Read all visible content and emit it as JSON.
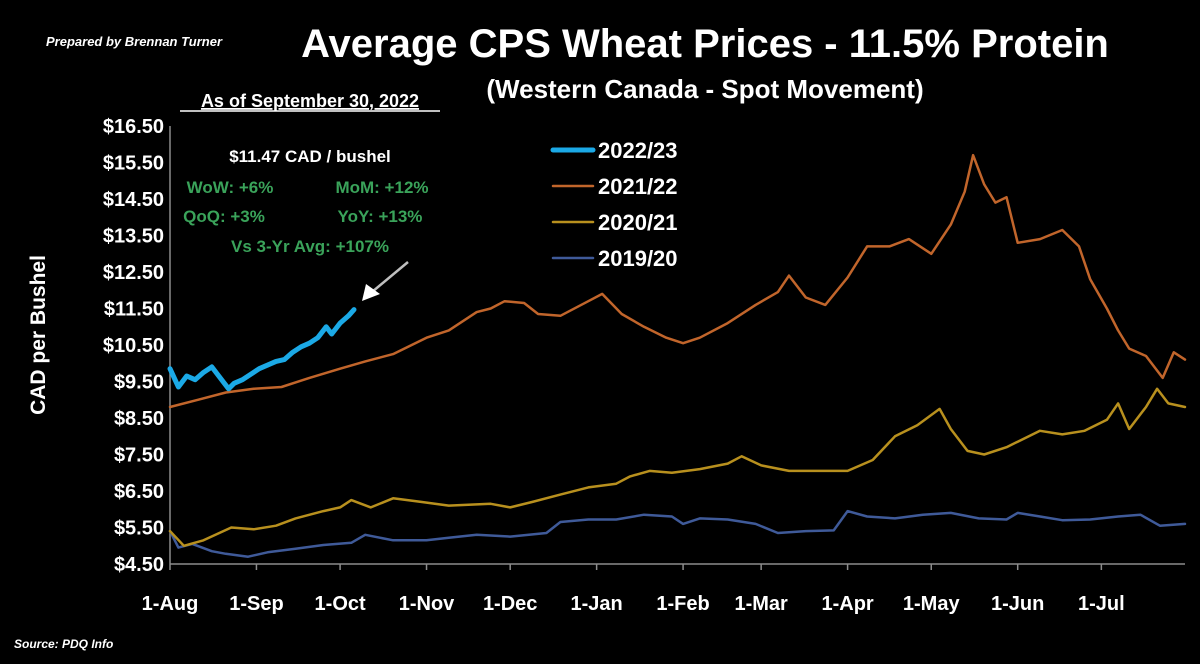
{
  "header": {
    "prepared_by": "Prepared by Brennan Turner",
    "title": "Average CPS Wheat Prices - 11.5% Protein",
    "subtitle": "(Western Canada - Spot Movement)",
    "as_of": "As of September 30, 2022",
    "source": "Source: PDQ Info"
  },
  "stats": {
    "price": "$11.47 CAD / bushel",
    "wow": "WoW: +6%",
    "mom": "MoM: +12%",
    "qoq": "QoQ: +3%",
    "yoy": "YoY: +13%",
    "vs3yr": "Vs 3-Yr Avg: +107%",
    "color": "#3aa35a"
  },
  "chart_data": {
    "type": "line",
    "title": "Average CPS Wheat Prices - 11.5% Protein",
    "subtitle": "(Western Canada - Spot Movement)",
    "xlabel": "",
    "ylabel": "CAD per Bushel",
    "x_unit": "day of crop year (from 1-Aug)",
    "xlim": [
      0,
      364
    ],
    "ylim": [
      4.5,
      16.5
    ],
    "grid": false,
    "legend_position": "top-center",
    "y_ticks": [
      "$4.50",
      "$5.50",
      "$6.50",
      "$7.50",
      "$8.50",
      "$9.50",
      "$10.50",
      "$11.50",
      "$12.50",
      "$13.50",
      "$14.50",
      "$15.50",
      "$16.50"
    ],
    "y_tick_values": [
      4.5,
      5.5,
      6.5,
      7.5,
      8.5,
      9.5,
      10.5,
      11.5,
      12.5,
      13.5,
      14.5,
      15.5,
      16.5
    ],
    "x_ticks": [
      {
        "label": "1-Aug",
        "day": 0
      },
      {
        "label": "1-Sep",
        "day": 31
      },
      {
        "label": "1-Oct",
        "day": 61
      },
      {
        "label": "1-Nov",
        "day": 92
      },
      {
        "label": "1-Dec",
        "day": 122
      },
      {
        "label": "1-Jan",
        "day": 153
      },
      {
        "label": "1-Feb",
        "day": 184
      },
      {
        "label": "1-Mar",
        "day": 212
      },
      {
        "label": "1-Apr",
        "day": 243
      },
      {
        "label": "1-May",
        "day": 273
      },
      {
        "label": "1-Jun",
        "day": 304
      },
      {
        "label": "1-Jul",
        "day": 334
      }
    ],
    "series": [
      {
        "name": "2019/20",
        "color": "#3f5a99",
        "width": 2.5,
        "points": [
          [
            0,
            5.4
          ],
          [
            3,
            4.95
          ],
          [
            8,
            5.05
          ],
          [
            15,
            4.85
          ],
          [
            20,
            4.78
          ],
          [
            28,
            4.7
          ],
          [
            35,
            4.82
          ],
          [
            45,
            4.92
          ],
          [
            55,
            5.02
          ],
          [
            65,
            5.08
          ],
          [
            70,
            5.3
          ],
          [
            80,
            5.15
          ],
          [
            92,
            5.15
          ],
          [
            100,
            5.22
          ],
          [
            110,
            5.3
          ],
          [
            122,
            5.25
          ],
          [
            135,
            5.35
          ],
          [
            140,
            5.65
          ],
          [
            150,
            5.72
          ],
          [
            160,
            5.72
          ],
          [
            170,
            5.85
          ],
          [
            180,
            5.8
          ],
          [
            184,
            5.6
          ],
          [
            190,
            5.75
          ],
          [
            200,
            5.72
          ],
          [
            210,
            5.6
          ],
          [
            218,
            5.35
          ],
          [
            228,
            5.4
          ],
          [
            238,
            5.42
          ],
          [
            243,
            5.95
          ],
          [
            250,
            5.8
          ],
          [
            260,
            5.75
          ],
          [
            270,
            5.85
          ],
          [
            280,
            5.9
          ],
          [
            290,
            5.75
          ],
          [
            300,
            5.72
          ],
          [
            304,
            5.9
          ],
          [
            312,
            5.8
          ],
          [
            320,
            5.7
          ],
          [
            330,
            5.72
          ],
          [
            340,
            5.8
          ],
          [
            348,
            5.85
          ],
          [
            355,
            5.55
          ],
          [
            364,
            5.6
          ]
        ]
      },
      {
        "name": "2020/21",
        "color": "#b8901e",
        "width": 2.5,
        "points": [
          [
            0,
            5.4
          ],
          [
            5,
            5.0
          ],
          [
            12,
            5.15
          ],
          [
            22,
            5.5
          ],
          [
            30,
            5.45
          ],
          [
            38,
            5.55
          ],
          [
            45,
            5.75
          ],
          [
            55,
            5.95
          ],
          [
            61,
            6.05
          ],
          [
            65,
            6.25
          ],
          [
            72,
            6.05
          ],
          [
            80,
            6.3
          ],
          [
            90,
            6.2
          ],
          [
            100,
            6.1
          ],
          [
            115,
            6.15
          ],
          [
            122,
            6.05
          ],
          [
            130,
            6.2
          ],
          [
            140,
            6.4
          ],
          [
            150,
            6.6
          ],
          [
            160,
            6.7
          ],
          [
            165,
            6.9
          ],
          [
            172,
            7.05
          ],
          [
            180,
            7.0
          ],
          [
            190,
            7.1
          ],
          [
            200,
            7.25
          ],
          [
            205,
            7.45
          ],
          [
            212,
            7.2
          ],
          [
            222,
            7.05
          ],
          [
            232,
            7.05
          ],
          [
            243,
            7.05
          ],
          [
            252,
            7.35
          ],
          [
            260,
            8.0
          ],
          [
            268,
            8.3
          ],
          [
            276,
            8.75
          ],
          [
            280,
            8.2
          ],
          [
            286,
            7.6
          ],
          [
            292,
            7.5
          ],
          [
            300,
            7.7
          ],
          [
            304,
            7.85
          ],
          [
            312,
            8.15
          ],
          [
            320,
            8.05
          ],
          [
            328,
            8.15
          ],
          [
            336,
            8.45
          ],
          [
            340,
            8.9
          ],
          [
            344,
            8.2
          ],
          [
            350,
            8.8
          ],
          [
            354,
            9.3
          ],
          [
            358,
            8.9
          ],
          [
            364,
            8.8
          ]
        ]
      },
      {
        "name": "2021/22",
        "color": "#c1652b",
        "width": 2.5,
        "points": [
          [
            0,
            8.8
          ],
          [
            10,
            9.0
          ],
          [
            20,
            9.2
          ],
          [
            30,
            9.3
          ],
          [
            40,
            9.35
          ],
          [
            50,
            9.6
          ],
          [
            61,
            9.85
          ],
          [
            70,
            10.05
          ],
          [
            80,
            10.25
          ],
          [
            92,
            10.7
          ],
          [
            100,
            10.9
          ],
          [
            110,
            11.4
          ],
          [
            115,
            11.5
          ],
          [
            120,
            11.7
          ],
          [
            127,
            11.65
          ],
          [
            132,
            11.35
          ],
          [
            140,
            11.3
          ],
          [
            150,
            11.7
          ],
          [
            155,
            11.9
          ],
          [
            162,
            11.35
          ],
          [
            170,
            11.0
          ],
          [
            178,
            10.7
          ],
          [
            184,
            10.55
          ],
          [
            190,
            10.7
          ],
          [
            200,
            11.1
          ],
          [
            210,
            11.6
          ],
          [
            218,
            11.95
          ],
          [
            222,
            12.4
          ],
          [
            228,
            11.8
          ],
          [
            235,
            11.6
          ],
          [
            243,
            12.35
          ],
          [
            250,
            13.2
          ],
          [
            258,
            13.2
          ],
          [
            265,
            13.4
          ],
          [
            273,
            13.0
          ],
          [
            280,
            13.8
          ],
          [
            285,
            14.7
          ],
          [
            288,
            15.7
          ],
          [
            292,
            14.9
          ],
          [
            296,
            14.4
          ],
          [
            300,
            14.55
          ],
          [
            304,
            13.3
          ],
          [
            312,
            13.4
          ],
          [
            320,
            13.65
          ],
          [
            326,
            13.2
          ],
          [
            330,
            12.3
          ],
          [
            336,
            11.5
          ],
          [
            340,
            10.9
          ],
          [
            344,
            10.4
          ],
          [
            350,
            10.2
          ],
          [
            356,
            9.6
          ],
          [
            360,
            10.3
          ],
          [
            364,
            10.1
          ]
        ]
      },
      {
        "name": "2022/23",
        "color": "#1ba9e6",
        "width": 5,
        "points": [
          [
            0,
            9.85
          ],
          [
            3,
            9.35
          ],
          [
            6,
            9.65
          ],
          [
            9,
            9.55
          ],
          [
            12,
            9.75
          ],
          [
            15,
            9.9
          ],
          [
            18,
            9.6
          ],
          [
            21,
            9.3
          ],
          [
            23,
            9.45
          ],
          [
            26,
            9.55
          ],
          [
            29,
            9.7
          ],
          [
            32,
            9.85
          ],
          [
            35,
            9.95
          ],
          [
            38,
            10.05
          ],
          [
            41,
            10.1
          ],
          [
            44,
            10.3
          ],
          [
            47,
            10.45
          ],
          [
            50,
            10.55
          ],
          [
            53,
            10.7
          ],
          [
            56,
            11.0
          ],
          [
            58,
            10.8
          ],
          [
            61,
            11.1
          ],
          [
            64,
            11.3
          ],
          [
            66,
            11.47
          ]
        ]
      }
    ]
  }
}
